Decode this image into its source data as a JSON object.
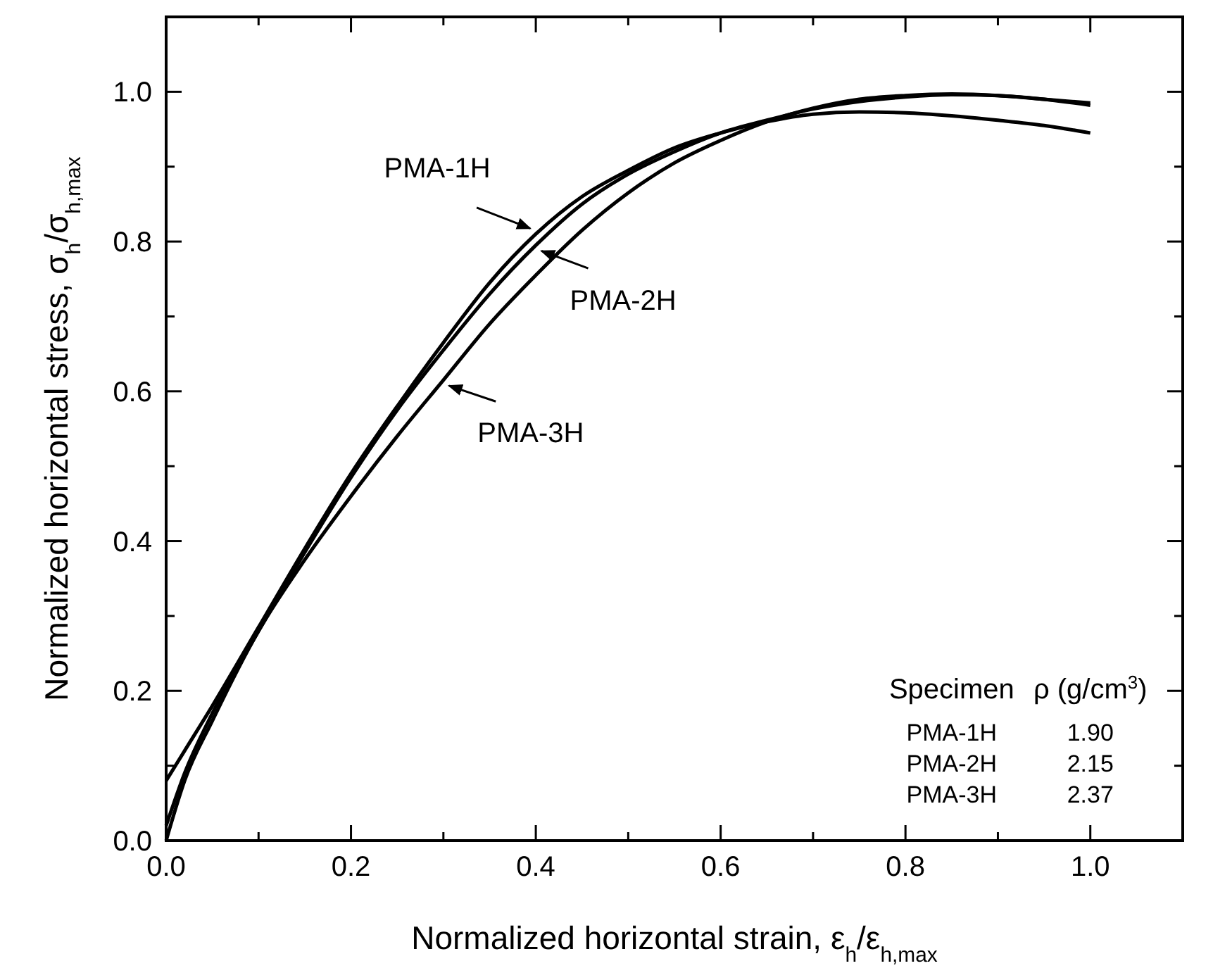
{
  "chart_data": {
    "type": "line",
    "xlabel": "Normalized horizontal strain, ε$_{h}$/ε$_{h,max}$",
    "ylabel": "Normalized horizontal stress, σ$_{h}$/σ$_{h,max}$",
    "x": [
      0,
      0.02,
      0.05,
      0.1,
      0.15,
      0.2,
      0.25,
      0.3,
      0.35,
      0.4,
      0.45,
      0.5,
      0.55,
      0.6,
      0.65,
      0.7,
      0.75,
      0.8,
      0.85,
      0.9,
      0.95,
      1.0
    ],
    "series": [
      {
        "name": "PMA-1H",
        "color": "#000000",
        "values": [
          0.08,
          0.12,
          0.18,
          0.285,
          0.39,
          0.49,
          0.58,
          0.665,
          0.745,
          0.81,
          0.86,
          0.895,
          0.925,
          0.945,
          0.96,
          0.97,
          0.973,
          0.972,
          0.968,
          0.962,
          0.955,
          0.945
        ]
      },
      {
        "name": "PMA-2H",
        "color": "#000000",
        "values": [
          0.02,
          0.09,
          0.17,
          0.28,
          0.385,
          0.485,
          0.575,
          0.655,
          0.73,
          0.795,
          0.85,
          0.89,
          0.92,
          0.945,
          0.962,
          0.977,
          0.987,
          0.993,
          0.996,
          0.995,
          0.99,
          0.985
        ]
      },
      {
        "name": "PMA-3H",
        "color": "#000000",
        "values": [
          0.0,
          0.08,
          0.16,
          0.28,
          0.375,
          0.46,
          0.54,
          0.615,
          0.69,
          0.755,
          0.815,
          0.865,
          0.905,
          0.935,
          0.96,
          0.978,
          0.99,
          0.995,
          0.997,
          0.995,
          0.99,
          0.982
        ]
      }
    ],
    "xlim": [
      0,
      1.1
    ],
    "ylim": [
      0,
      1.1
    ],
    "xticks": [
      {
        "value": 0,
        "label": "0.0"
      },
      {
        "value": 0.1,
        "label": null
      },
      {
        "value": 0.2,
        "label": "0.2"
      },
      {
        "value": 0.3,
        "label": null
      },
      {
        "value": 0.4,
        "label": "0.4"
      },
      {
        "value": 0.5,
        "label": null
      },
      {
        "value": 0.6,
        "label": "0.6"
      },
      {
        "value": 0.7,
        "label": null
      },
      {
        "value": 0.8,
        "label": "0.8"
      },
      {
        "value": 0.9,
        "label": null
      },
      {
        "value": 1.0,
        "label": "1.0"
      }
    ],
    "yticks": [
      {
        "value": 0,
        "label": "0.0"
      },
      {
        "value": 0.1,
        "label": null
      },
      {
        "value": 0.2,
        "label": "0.2"
      },
      {
        "value": 0.3,
        "label": null
      },
      {
        "value": 0.4,
        "label": "0.4"
      },
      {
        "value": 0.5,
        "label": null
      },
      {
        "value": 0.6,
        "label": "0.6"
      },
      {
        "value": 0.7,
        "label": null
      },
      {
        "value": 0.8,
        "label": "0.8"
      },
      {
        "value": 0.9,
        "label": null
      },
      {
        "value": 1.0,
        "label": "1.0"
      }
    ],
    "annotations": [
      "Specimen",
      "ρ (g/cm$^{3}$)",
      "PMA-1H",
      "1.90",
      "PMA-2H",
      "2.15",
      "PMA-3H",
      "2.37"
    ],
    "grid": false,
    "legend": "center",
    "marker": "none",
    "line_style": "solid"
  }
}
